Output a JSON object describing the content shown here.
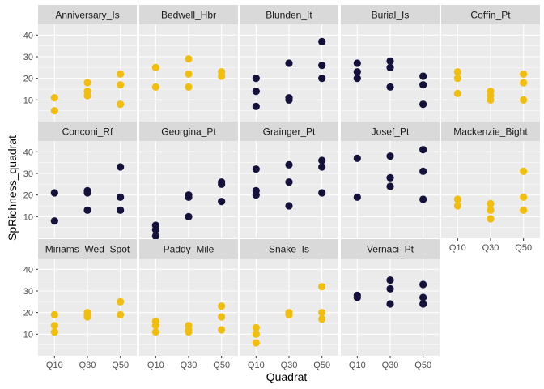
{
  "chart_data": {
    "type": "scatter",
    "title": "",
    "xlabel": "Quadrat",
    "ylabel": "SpRichness_quadrat",
    "categories": [
      "Q10",
      "Q30",
      "Q50"
    ],
    "ylim": [
      0,
      45
    ],
    "yticks": [
      10,
      20,
      30,
      40
    ],
    "grid": true,
    "legend": "none",
    "colors": {
      "gold": "#F2BE0E",
      "navy": "#14123B",
      "panel_bg": "#EBEBEB",
      "strip_bg": "#D9D9D9",
      "grid": "#FFFFFF"
    },
    "facets": [
      {
        "name": "Anniversary_Is",
        "color": "gold",
        "points": [
          [
            "Q10",
            11
          ],
          [
            "Q10",
            5
          ],
          [
            "Q30",
            18
          ],
          [
            "Q30",
            14
          ],
          [
            "Q30",
            12
          ],
          [
            "Q50",
            22
          ],
          [
            "Q50",
            17
          ],
          [
            "Q50",
            8
          ]
        ]
      },
      {
        "name": "Bedwell_Hbr",
        "color": "gold",
        "points": [
          [
            "Q10",
            25
          ],
          [
            "Q10",
            16
          ],
          [
            "Q30",
            29
          ],
          [
            "Q30",
            22
          ],
          [
            "Q30",
            16
          ],
          [
            "Q50",
            23
          ],
          [
            "Q50",
            21
          ]
        ]
      },
      {
        "name": "Blunden_It",
        "color": "navy",
        "points": [
          [
            "Q10",
            20
          ],
          [
            "Q10",
            14
          ],
          [
            "Q10",
            7
          ],
          [
            "Q30",
            27
          ],
          [
            "Q30",
            11
          ],
          [
            "Q30",
            10
          ],
          [
            "Q50",
            37
          ],
          [
            "Q50",
            26
          ],
          [
            "Q50",
            20
          ]
        ]
      },
      {
        "name": "Burial_Is",
        "color": "navy",
        "points": [
          [
            "Q10",
            27
          ],
          [
            "Q10",
            23
          ],
          [
            "Q10",
            20
          ],
          [
            "Q30",
            28
          ],
          [
            "Q30",
            25
          ],
          [
            "Q30",
            16
          ],
          [
            "Q50",
            21
          ],
          [
            "Q50",
            17
          ],
          [
            "Q50",
            8
          ]
        ]
      },
      {
        "name": "Coffin_Pt",
        "color": "gold",
        "points": [
          [
            "Q10",
            23
          ],
          [
            "Q10",
            20
          ],
          [
            "Q10",
            13
          ],
          [
            "Q30",
            14
          ],
          [
            "Q30",
            12
          ],
          [
            "Q30",
            10
          ],
          [
            "Q50",
            22
          ],
          [
            "Q50",
            18
          ],
          [
            "Q50",
            10
          ]
        ]
      },
      {
        "name": "Conconi_Rf",
        "color": "navy",
        "points": [
          [
            "Q10",
            21
          ],
          [
            "Q10",
            8
          ],
          [
            "Q30",
            22
          ],
          [
            "Q30",
            21
          ],
          [
            "Q30",
            13
          ],
          [
            "Q50",
            33
          ],
          [
            "Q50",
            19
          ],
          [
            "Q50",
            13
          ]
        ]
      },
      {
        "name": "Georgina_Pt",
        "color": "navy",
        "points": [
          [
            "Q10",
            6
          ],
          [
            "Q10",
            4
          ],
          [
            "Q10",
            1
          ],
          [
            "Q30",
            20
          ],
          [
            "Q30",
            19
          ],
          [
            "Q30",
            10
          ],
          [
            "Q50",
            26
          ],
          [
            "Q50",
            25
          ],
          [
            "Q50",
            17
          ]
        ]
      },
      {
        "name": "Grainger_Pt",
        "color": "navy",
        "points": [
          [
            "Q10",
            32
          ],
          [
            "Q10",
            22
          ],
          [
            "Q10",
            20
          ],
          [
            "Q30",
            34
          ],
          [
            "Q30",
            26
          ],
          [
            "Q30",
            15
          ],
          [
            "Q50",
            36
          ],
          [
            "Q50",
            33
          ],
          [
            "Q50",
            21
          ]
        ]
      },
      {
        "name": "Josef_Pt",
        "color": "navy",
        "points": [
          [
            "Q10",
            37
          ],
          [
            "Q10",
            19
          ],
          [
            "Q30",
            38
          ],
          [
            "Q30",
            28
          ],
          [
            "Q30",
            24
          ],
          [
            "Q50",
            41
          ],
          [
            "Q50",
            31
          ],
          [
            "Q50",
            18
          ]
        ]
      },
      {
        "name": "Mackenzie_Bight",
        "color": "gold",
        "points": [
          [
            "Q10",
            18
          ],
          [
            "Q10",
            15
          ],
          [
            "Q30",
            16
          ],
          [
            "Q30",
            13
          ],
          [
            "Q30",
            9
          ],
          [
            "Q50",
            31
          ],
          [
            "Q50",
            19
          ],
          [
            "Q50",
            13
          ]
        ]
      },
      {
        "name": "Miriams_Wed_Spot",
        "color": "gold",
        "points": [
          [
            "Q10",
            19
          ],
          [
            "Q10",
            14
          ],
          [
            "Q10",
            11
          ],
          [
            "Q30",
            20
          ],
          [
            "Q30",
            19
          ],
          [
            "Q30",
            18
          ],
          [
            "Q50",
            25
          ],
          [
            "Q50",
            19
          ]
        ]
      },
      {
        "name": "Paddy_Mile",
        "color": "gold",
        "points": [
          [
            "Q10",
            16
          ],
          [
            "Q10",
            14
          ],
          [
            "Q10",
            11
          ],
          [
            "Q30",
            14
          ],
          [
            "Q30",
            12
          ],
          [
            "Q30",
            11
          ],
          [
            "Q50",
            23
          ],
          [
            "Q50",
            18
          ],
          [
            "Q50",
            12
          ]
        ]
      },
      {
        "name": "Snake_Is",
        "color": "gold",
        "points": [
          [
            "Q10",
            13
          ],
          [
            "Q10",
            10
          ],
          [
            "Q10",
            6
          ],
          [
            "Q30",
            20
          ],
          [
            "Q30",
            19
          ],
          [
            "Q50",
            32
          ],
          [
            "Q50",
            20
          ],
          [
            "Q50",
            17
          ]
        ]
      },
      {
        "name": "Vernaci_Pt",
        "color": "navy",
        "points": [
          [
            "Q10",
            28
          ],
          [
            "Q10",
            27
          ],
          [
            "Q30",
            35
          ],
          [
            "Q30",
            31
          ],
          [
            "Q30",
            24
          ],
          [
            "Q50",
            33
          ],
          [
            "Q50",
            27
          ],
          [
            "Q50",
            24
          ]
        ]
      }
    ]
  }
}
